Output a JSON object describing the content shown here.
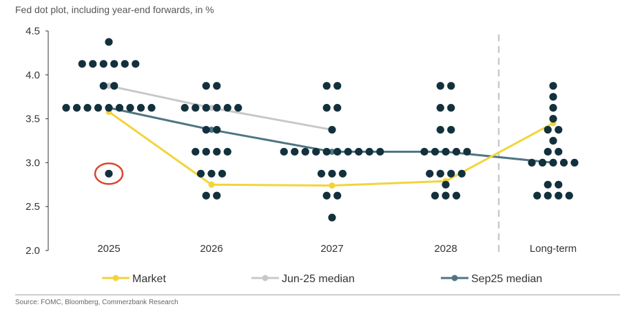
{
  "title": "Fed dot plot, including year-end forwards, in %",
  "source": "Source: FOMC, Bloomberg, Commerzbank Research",
  "chart_data": {
    "type": "scatter",
    "title": "Fed dot plot, including year-end forwards, in %",
    "categories": [
      "2025",
      "2026",
      "2027",
      "2028",
      "Long-term"
    ],
    "ylim": [
      2.0,
      4.5
    ],
    "yticks": [
      "2.0",
      "2.5",
      "3.0",
      "3.5",
      "4.0",
      "4.5"
    ],
    "ytick_values": [
      2.0,
      2.5,
      3.0,
      3.5,
      4.0,
      4.5
    ],
    "dots": [
      {
        "category": "2025",
        "rows": [
          [
            4.375,
            1
          ],
          [
            4.125,
            6
          ],
          [
            3.875,
            2
          ],
          [
            3.625,
            9
          ],
          [
            2.875,
            1
          ]
        ]
      },
      {
        "category": "2026",
        "rows": [
          [
            3.875,
            2
          ],
          [
            3.625,
            6
          ],
          [
            3.375,
            2
          ],
          [
            3.125,
            4
          ],
          [
            2.875,
            3
          ],
          [
            2.625,
            2
          ]
        ]
      },
      {
        "category": "2027",
        "rows": [
          [
            3.875,
            2
          ],
          [
            3.625,
            2
          ],
          [
            3.375,
            1
          ],
          [
            3.125,
            10
          ],
          [
            2.875,
            3
          ],
          [
            2.625,
            2
          ],
          [
            2.375,
            1
          ]
        ]
      },
      {
        "category": "2028",
        "rows": [
          [
            3.875,
            2
          ],
          [
            3.625,
            2
          ],
          [
            3.375,
            2
          ],
          [
            3.125,
            5
          ],
          [
            2.875,
            4
          ],
          [
            2.75,
            1
          ],
          [
            2.625,
            3
          ]
        ]
      },
      {
        "category": "Long-term",
        "rows": [
          [
            3.875,
            1
          ],
          [
            3.75,
            1
          ],
          [
            3.625,
            1
          ],
          [
            3.5,
            1
          ],
          [
            3.375,
            2
          ],
          [
            3.25,
            1
          ],
          [
            3.125,
            2
          ],
          [
            3.0,
            5
          ],
          [
            2.75,
            2
          ],
          [
            2.625,
            4
          ]
        ]
      }
    ],
    "highlight": {
      "category": "2025",
      "value": 2.875,
      "color": "#d9472b"
    },
    "series": [
      {
        "name": "Market",
        "color": "#f2d43a",
        "values": [
          3.58,
          2.75,
          2.74,
          2.79,
          3.45
        ]
      },
      {
        "name": "Jun-25 median",
        "color": "#c8c8c8",
        "values": [
          3.875,
          3.625,
          3.375,
          null,
          null
        ]
      },
      {
        "name": "Sep25 median",
        "color": "#4e7582",
        "values": [
          3.625,
          3.375,
          3.125,
          3.125,
          3.0
        ]
      }
    ],
    "dot_color": "#13313d",
    "divider_after": "2028",
    "legend_position": "bottom"
  }
}
